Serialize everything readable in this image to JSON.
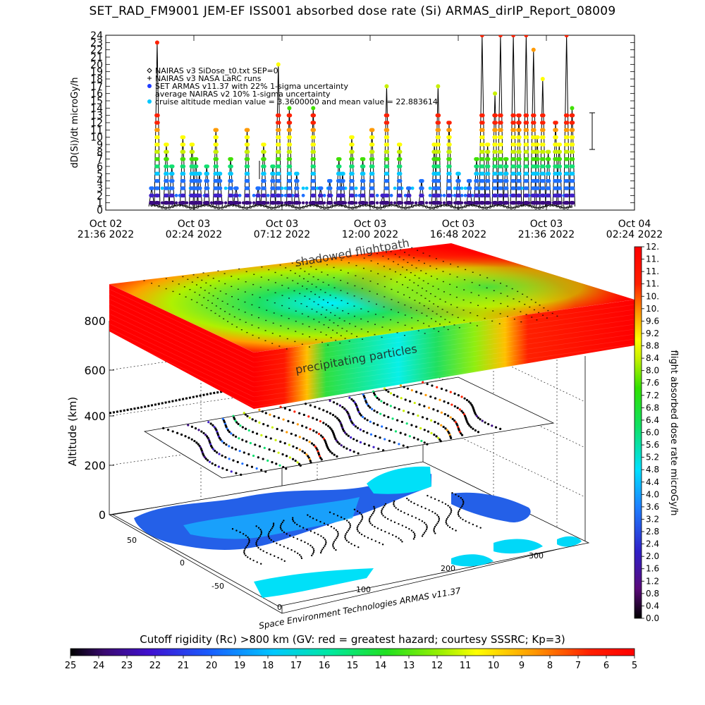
{
  "title": "SET_RAD_FM9001  JEM-EF ISS001 absorbed dose rate (Si) ARMAS_dirIP_Report_08009",
  "legend": [
    "NAIRAS v3 SiDose_t0.txt SEP=0",
    "NAIRAS v3 NASA LaRC runs",
    "SET ARMAS v11.37 with 22% 1-sigma uncertainty",
    "average NAIRAS v2 10% 1-sigma uncertainty",
    "cruise altitude median value = 3.3600000 and mean value = 22.883614"
  ],
  "colors": {
    "legend_markers": [
      "#000000",
      "#000000",
      "#1f3cff",
      "#000000",
      "#00c8ff"
    ]
  },
  "footer": {
    "credit": "Space Environment Technologies ARMAS v11.37",
    "rigidity_label": "Cutoff rigidity (Rc) >800 km (GV: red = greatest hazard; courtesy SSSRC; Kp=3)"
  },
  "chart_data": [
    {
      "type": "scatter",
      "title": "SET_RAD_FM9001  JEM-EF ISS001 absorbed dose rate (Si) ARMAS_dirIP_Report_08009",
      "ylabel": "dD(Si)/dt microGy/h",
      "ylim": [
        0,
        24
      ],
      "yticks": [
        "0",
        "1",
        "2",
        "3",
        "4",
        "5",
        "6",
        "7",
        "8",
        "9",
        "10",
        "11",
        "12",
        "13",
        "14",
        "15",
        "16",
        "17",
        "18",
        "19",
        "20",
        "21",
        "22",
        "23",
        "24"
      ],
      "xticks": [
        {
          "line1": "Oct 02",
          "line2": "21:36 2022"
        },
        {
          "line1": "Oct 03",
          "line2": "02:24 2022"
        },
        {
          "line1": "Oct 03",
          "line2": "07:12 2022"
        },
        {
          "line1": "Oct 03",
          "line2": "12:00 2022"
        },
        {
          "line1": "Oct 03",
          "line2": "16:48 2022"
        },
        {
          "line1": "Oct 03",
          "line2": "21:36 2022"
        },
        {
          "line1": "Oct 04",
          "line2": "02:24 2022"
        }
      ],
      "x_start": "2022-10-02 21:36",
      "x_end": "2022-10-04 02:24",
      "data_start": "2022-10-03 00:06",
      "data_end": "2022-10-03 23:06",
      "baseline_value": 0.5,
      "spike_times": [
        "00:06",
        "00:24",
        "00:54",
        "01:12",
        "01:48",
        "02:18",
        "02:30",
        "02:42",
        "03:06",
        "03:36",
        "03:48",
        "04:24",
        "04:42",
        "05:18",
        "05:54",
        "06:12",
        "06:42",
        "07:00",
        "07:36",
        "08:00",
        "08:54",
        "09:18",
        "09:48",
        "10:18",
        "10:30",
        "11:00",
        "11:36",
        "12:06",
        "12:42",
        "12:54",
        "13:36",
        "14:06",
        "14:48",
        "15:30",
        "15:42",
        "16:18",
        "16:48",
        "17:24",
        "17:48",
        "18:06",
        "18:24",
        "18:48",
        "19:06",
        "19:24",
        "19:48",
        "20:06",
        "20:30",
        "20:54",
        "21:06",
        "21:24",
        "21:42",
        "22:06",
        "22:18",
        "22:42",
        "23:00"
      ],
      "spike_peaks": [
        3,
        23,
        9,
        6,
        10,
        9,
        7,
        5,
        6,
        11,
        5,
        7,
        3,
        11,
        3,
        9,
        6,
        20,
        14,
        5,
        14,
        3,
        4,
        7,
        5,
        10,
        7,
        11,
        2,
        17,
        9,
        3,
        4,
        9,
        17,
        12,
        5,
        4,
        7,
        24,
        9,
        16,
        24,
        7,
        24,
        13,
        24,
        22,
        10,
        18,
        8,
        12,
        9,
        24,
        14
      ]
    },
    {
      "type": "heatmap",
      "title": "",
      "zlabel": "Altitude (km)",
      "zticks": [
        "0",
        "200",
        "400",
        "600",
        "800"
      ],
      "x_ticks": [
        "100",
        "200",
        "300"
      ],
      "y_ticks": [
        "50",
        "0",
        "-50"
      ],
      "annotations": [
        "shadowed flightpath",
        "precipitating particles"
      ],
      "colorbar_label": "flight absorbed dose rate microGy/h",
      "colorbar_ticks": [
        "0.0",
        "0.4",
        "0.8",
        "1.2",
        "1.6",
        "2.0",
        "2.4",
        "2.8",
        "3.2",
        "3.6",
        "4.0",
        "4.4",
        "4.8",
        "5.2",
        "5.6",
        "6.0",
        "6.4",
        "6.8",
        "7.2",
        "7.6",
        "8.0",
        "8.4",
        "8.8",
        "9.2",
        "9.6",
        "10.",
        "10.",
        "11.",
        "11.",
        "11.",
        "12."
      ],
      "colorbar_range": [
        0,
        12
      ]
    },
    {
      "type": "heatmap",
      "title": "",
      "xlabel": "Cutoff rigidity (Rc) >800 km (GV: red = greatest hazard; courtesy SSSRC; Kp=3)",
      "colorbar_ticks": [
        "25",
        "24",
        "23",
        "22",
        "21",
        "20",
        "19",
        "18",
        "17",
        "16",
        "15",
        "14",
        "13",
        "12",
        "11",
        "10",
        "9",
        "8",
        "7",
        "6",
        "5"
      ],
      "colorbar_range": [
        25,
        5
      ]
    }
  ]
}
